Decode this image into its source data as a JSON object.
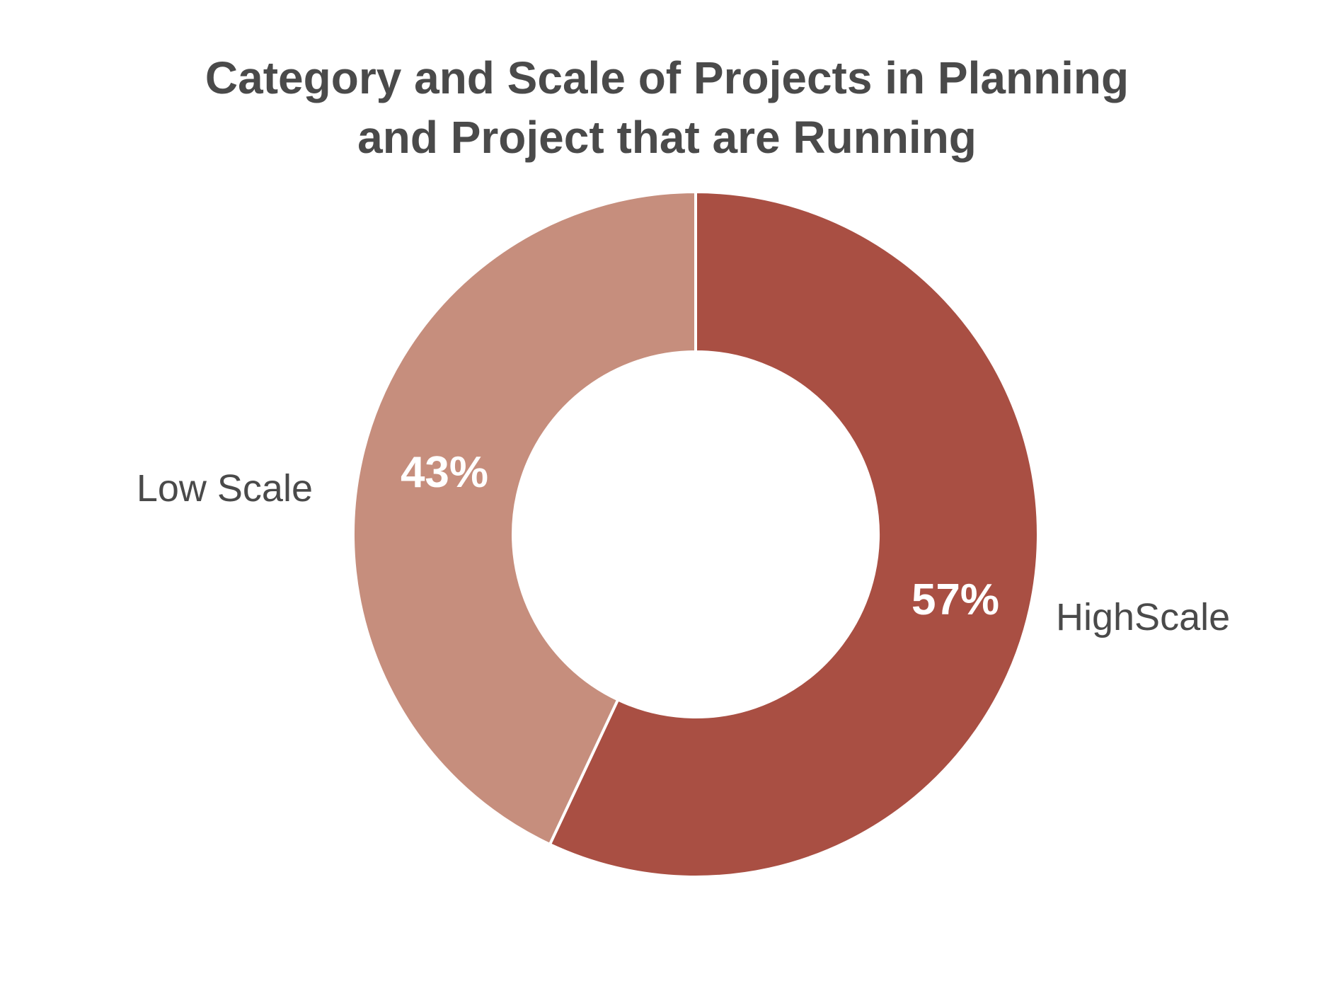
{
  "chart_data": {
    "type": "pie",
    "variant": "donut",
    "title": "Category and Scale of Projects in Planning and Project that are Running",
    "title_lines": [
      "Category and Scale of Projects in Planning",
      "and Project that are Running"
    ],
    "categories": [
      "HighScale",
      "Low Scale"
    ],
    "values": [
      57,
      43
    ],
    "value_labels": [
      "57%",
      "43%"
    ],
    "colors": [
      "#a94f43",
      "#c68e7d"
    ],
    "start_angle_deg": 0,
    "direction": "clockwise"
  }
}
